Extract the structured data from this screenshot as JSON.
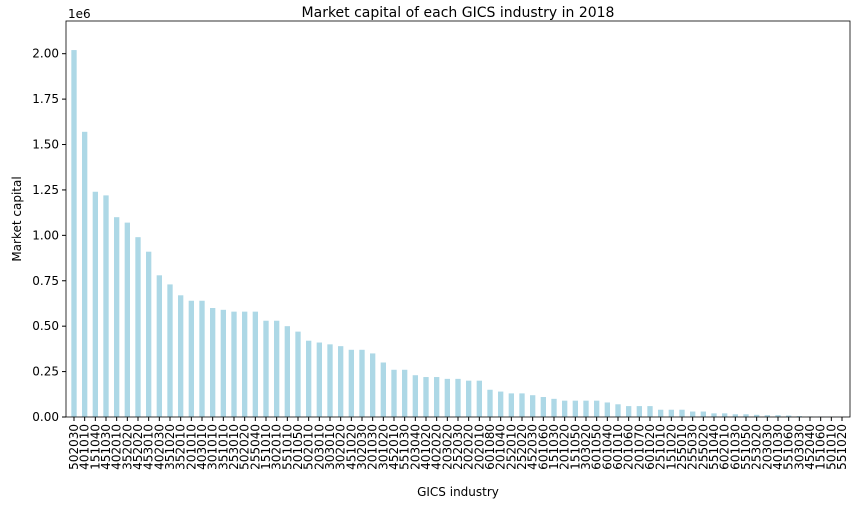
{
  "chart_data": {
    "type": "bar",
    "title": "Market capital of each GICS industry in 2018",
    "x_label": "GICS industry",
    "y_label": "Market capital",
    "y_offset_label": "1e6",
    "color": "#add8e6",
    "categories": [
      "502030",
      "401010",
      "151040",
      "451030",
      "402010",
      "352020",
      "452020",
      "453010",
      "402030",
      "351020",
      "352010",
      "201010",
      "403010",
      "301010",
      "351010",
      "253010",
      "502020",
      "255040",
      "151010",
      "302010",
      "551010",
      "201050",
      "502010",
      "203010",
      "303010",
      "302020",
      "451020",
      "302030",
      "201030",
      "301020",
      "452010",
      "551030",
      "203040",
      "401020",
      "402020",
      "203020",
      "252030",
      "202020",
      "202010",
      "601080",
      "201040",
      "252010",
      "252020",
      "452030",
      "601060",
      "151030",
      "201020",
      "151050",
      "303020",
      "601050",
      "601040",
      "601010",
      "201060",
      "201070",
      "601020",
      "251010",
      "151020",
      "255010",
      "255030",
      "255020",
      "551040",
      "602010",
      "601030",
      "551050",
      "253020",
      "203030",
      "401030",
      "551060",
      "303030",
      "452040",
      "151060",
      "501010",
      "551020"
    ],
    "values": [
      2.02,
      1.57,
      1.24,
      1.22,
      1.1,
      1.07,
      0.99,
      0.91,
      0.78,
      0.73,
      0.67,
      0.64,
      0.64,
      0.6,
      0.59,
      0.58,
      0.58,
      0.58,
      0.53,
      0.53,
      0.5,
      0.47,
      0.42,
      0.41,
      0.4,
      0.39,
      0.37,
      0.37,
      0.35,
      0.3,
      0.26,
      0.26,
      0.23,
      0.22,
      0.22,
      0.21,
      0.21,
      0.2,
      0.2,
      0.15,
      0.14,
      0.13,
      0.13,
      0.12,
      0.11,
      0.1,
      0.09,
      0.09,
      0.09,
      0.09,
      0.08,
      0.07,
      0.06,
      0.06,
      0.06,
      0.04,
      0.04,
      0.04,
      0.03,
      0.03,
      0.02,
      0.02,
      0.015,
      0.015,
      0.012,
      0.01,
      0.01,
      0.008,
      0.005,
      0.003,
      0.002,
      0.001,
      0.0005
    ],
    "ylim": [
      0,
      2.18
    ],
    "yticks": [
      {
        "value": 0,
        "label": "0.00"
      },
      0.25,
      {
        "value": 0.5,
        "label": "0.50"
      },
      0.75,
      {
        "value": 1,
        "label": "1.00"
      },
      1.25,
      {
        "value": 1.5,
        "label": "1.50"
      },
      1.75,
      {
        "value": 2,
        "label": "2.00"
      }
    ]
  }
}
